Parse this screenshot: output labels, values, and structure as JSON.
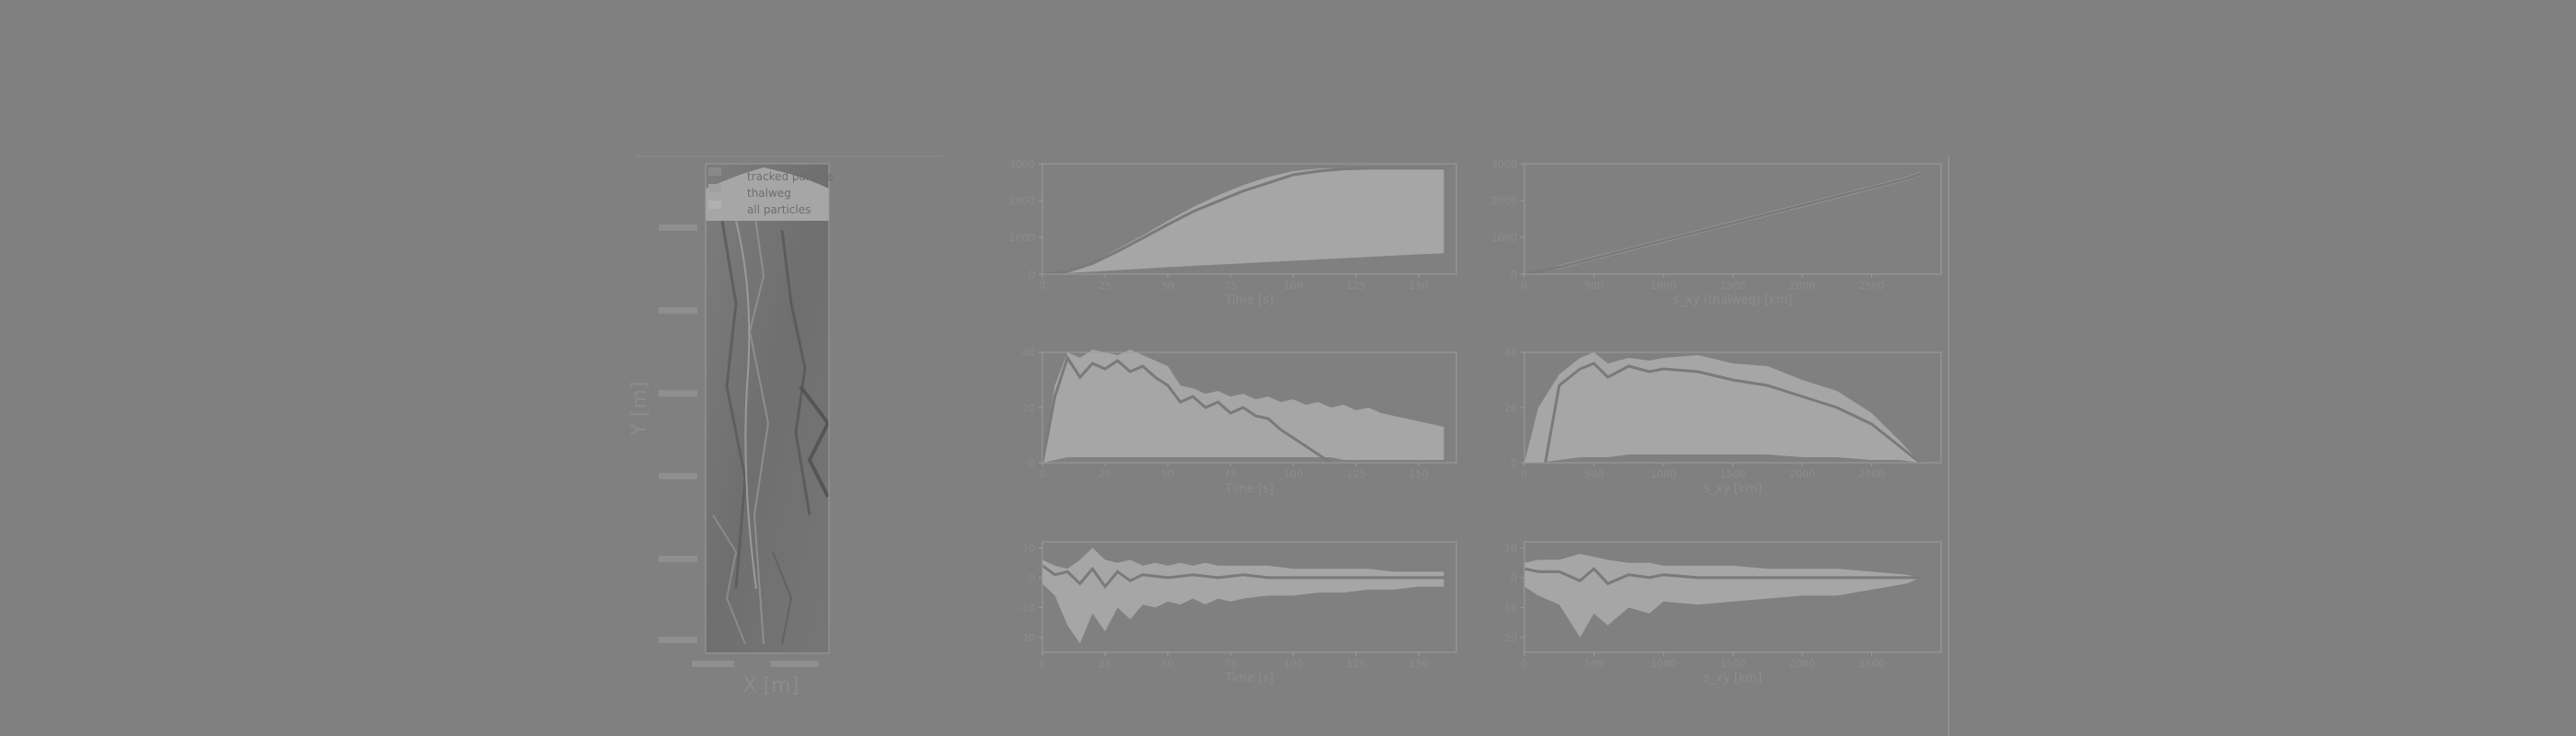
{
  "colors": {
    "background": "#808080",
    "axes": "#9c9c9c",
    "fill": "#a6a6a6",
    "line": "#7a7a7a",
    "text": "#8c8c8c",
    "map_dark": "#5e5e5e",
    "map_light": "#9a9a9a"
  },
  "legend": {
    "tracked": "tracked particle",
    "thalweg": "thalweg",
    "all": "all particles"
  },
  "chart_data": [
    {
      "id": "map",
      "type": "heatmap",
      "description": "hillshade terrain with particle paths",
      "xlabel": "X [m]",
      "ylabel": "Y [m]",
      "xticks": [
        "",
        ""
      ],
      "yticks": [
        "",
        "",
        "",
        "",
        "",
        ""
      ]
    },
    {
      "id": "p1",
      "type": "area",
      "xlabel": "Time [s]",
      "ylabel": "",
      "xlim": [
        0,
        165
      ],
      "ylim": [
        0,
        3000
      ],
      "xticks": [
        0,
        25,
        50,
        75,
        100,
        125,
        150
      ],
      "yticks": [
        0,
        1000,
        2000,
        3000
      ],
      "band_x": [
        0,
        10,
        20,
        30,
        40,
        50,
        60,
        70,
        80,
        90,
        100,
        110,
        120,
        130,
        140,
        150,
        160
      ],
      "band_upper": [
        0,
        80,
        320,
        680,
        1050,
        1450,
        1820,
        2140,
        2420,
        2640,
        2800,
        2870,
        2880,
        2880,
        2880,
        2880,
        2880
      ],
      "band_lower": [
        0,
        30,
        70,
        110,
        150,
        190,
        225,
        260,
        295,
        330,
        365,
        400,
        435,
        470,
        505,
        540,
        570
      ],
      "line_x": [
        0,
        10,
        20,
        30,
        40,
        50,
        60,
        70,
        80,
        90,
        100,
        110,
        120,
        130,
        140,
        150,
        160
      ],
      "line_y": [
        0,
        70,
        290,
        620,
        980,
        1350,
        1700,
        1980,
        2260,
        2480,
        2700,
        2800,
        2860,
        2880,
        2880,
        2880,
        2880
      ]
    },
    {
      "id": "p2",
      "type": "area",
      "xlabel": "s_xy (thalweg) [km]",
      "ylabel": "",
      "xlim": [
        0,
        3000
      ],
      "ylim": [
        0,
        3000
      ],
      "xticks": [
        0,
        500,
        1000,
        1500,
        2000,
        2500
      ],
      "yticks": [
        0,
        1000,
        2000,
        3000
      ],
      "band_x": [
        0,
        250,
        500,
        750,
        1000,
        1250,
        1500,
        1750,
        2000,
        2250,
        2500,
        2750,
        2850
      ],
      "band_upper": [
        0,
        240,
        480,
        720,
        960,
        1200,
        1440,
        1680,
        1920,
        2160,
        2400,
        2640,
        2780
      ],
      "band_lower": [
        0,
        140,
        380,
        620,
        860,
        1100,
        1340,
        1580,
        1820,
        2060,
        2300,
        2540,
        2680
      ],
      "line_x": [
        0,
        250,
        500,
        750,
        1000,
        1250,
        1500,
        1750,
        2000,
        2250,
        2500,
        2750,
        2850
      ],
      "line_y": [
        0,
        190,
        430,
        670,
        910,
        1150,
        1390,
        1630,
        1870,
        2110,
        2350,
        2590,
        2730
      ]
    },
    {
      "id": "p3",
      "type": "area",
      "xlabel": "Time [s]",
      "ylabel": "",
      "xlim": [
        0,
        165
      ],
      "ylim": [
        0,
        40
      ],
      "xticks": [
        0,
        25,
        50,
        75,
        100,
        125,
        150
      ],
      "yticks": [
        0,
        20,
        40
      ],
      "band_x": [
        0,
        5,
        10,
        15,
        20,
        25,
        30,
        35,
        40,
        45,
        50,
        55,
        60,
        65,
        70,
        75,
        80,
        85,
        90,
        95,
        100,
        105,
        110,
        115,
        120,
        125,
        130,
        135,
        140,
        145,
        150,
        155,
        160
      ],
      "band_upper": [
        0,
        28,
        40,
        38,
        41,
        40,
        39,
        41,
        39,
        37,
        35,
        28,
        27,
        25,
        26,
        24,
        25,
        23,
        24,
        22,
        23,
        21,
        22,
        20,
        21,
        19,
        20,
        18,
        17,
        16,
        15,
        14,
        13
      ],
      "band_lower": [
        0,
        1,
        2,
        2,
        2,
        2,
        2,
        2,
        2,
        2,
        2,
        2,
        2,
        2,
        2,
        2,
        2,
        2,
        2,
        2,
        2,
        2,
        2,
        2,
        1,
        1,
        1,
        1,
        1,
        1,
        1,
        1,
        1
      ],
      "line_x": [
        0,
        5,
        10,
        15,
        20,
        25,
        30,
        35,
        40,
        45,
        50,
        55,
        60,
        65,
        70,
        75,
        80,
        85,
        90,
        95,
        100,
        105,
        110,
        115
      ],
      "line_y": [
        0,
        24,
        38,
        31,
        36,
        34,
        37,
        33,
        35,
        31,
        28,
        22,
        24,
        20,
        22,
        18,
        20,
        17,
        16,
        12,
        9,
        6,
        3,
        0
      ]
    },
    {
      "id": "p4",
      "type": "area",
      "xlabel": "s_xy [km]",
      "ylabel": "",
      "xlim": [
        0,
        3000
      ],
      "ylim": [
        0,
        40
      ],
      "xticks": [
        0,
        500,
        1000,
        1500,
        2000,
        2500
      ],
      "yticks": [
        0,
        20,
        40
      ],
      "band_x": [
        0,
        100,
        250,
        400,
        500,
        600,
        750,
        900,
        1000,
        1250,
        1500,
        1750,
        2000,
        2250,
        2500,
        2700,
        2850
      ],
      "band_upper": [
        0,
        20,
        32,
        38,
        40,
        36,
        38,
        37,
        38,
        39,
        36,
        35,
        30,
        26,
        18,
        8,
        0
      ],
      "band_lower": [
        0,
        0,
        1,
        2,
        2,
        2,
        3,
        3,
        3,
        3,
        3,
        3,
        2,
        2,
        1,
        1,
        0
      ],
      "line_x": [
        150,
        250,
        400,
        500,
        600,
        750,
        900,
        1000,
        1250,
        1500,
        1750,
        2000,
        2250,
        2500,
        2700,
        2850
      ],
      "line_y": [
        0,
        28,
        34,
        36,
        31,
        35,
        33,
        34,
        33,
        30,
        28,
        24,
        20,
        14,
        6,
        0
      ]
    },
    {
      "id": "p5",
      "type": "area",
      "xlabel": "Time [s]",
      "ylabel": "",
      "xlim": [
        0,
        165
      ],
      "ylim": [
        -25,
        12
      ],
      "xticks": [
        0,
        25,
        50,
        75,
        100,
        125,
        150
      ],
      "yticks": [
        -20,
        -10,
        0,
        10
      ],
      "band_x": [
        0,
        5,
        10,
        15,
        20,
        25,
        30,
        35,
        40,
        45,
        50,
        55,
        60,
        65,
        70,
        75,
        80,
        90,
        100,
        110,
        120,
        130,
        140,
        150,
        160
      ],
      "band_upper": [
        6,
        4,
        3,
        6,
        10,
        6,
        5,
        6,
        4,
        5,
        4,
        5,
        4,
        5,
        4,
        4,
        4,
        4,
        3,
        3,
        3,
        3,
        2,
        2,
        2
      ],
      "band_lower": [
        -2,
        -6,
        -16,
        -22,
        -12,
        -18,
        -10,
        -14,
        -9,
        -10,
        -8,
        -9,
        -7,
        -9,
        -7,
        -8,
        -7,
        -6,
        -6,
        -5,
        -5,
        -4,
        -4,
        -3,
        -3
      ],
      "line_x": [
        0,
        5,
        10,
        15,
        20,
        25,
        30,
        35,
        40,
        50,
        60,
        70,
        80,
        90,
        100,
        110,
        120,
        130,
        140,
        150,
        160
      ],
      "line_y": [
        4,
        1,
        2,
        -2,
        3,
        -3,
        2,
        -1,
        1,
        0,
        1,
        0,
        1,
        0,
        0,
        0,
        0,
        0,
        0,
        0,
        0
      ]
    },
    {
      "id": "p6",
      "type": "area",
      "xlabel": "s_xy [km]",
      "ylabel": "",
      "xlim": [
        0,
        3000
      ],
      "ylim": [
        -25,
        12
      ],
      "xticks": [
        0,
        500,
        1000,
        1500,
        2000,
        2500
      ],
      "yticks": [
        -20,
        -10,
        0,
        10
      ],
      "band_x": [
        0,
        100,
        250,
        400,
        500,
        600,
        750,
        900,
        1000,
        1250,
        1500,
        1750,
        2000,
        2250,
        2500,
        2750,
        2850
      ],
      "band_upper": [
        5,
        6,
        6,
        8,
        7,
        6,
        5,
        5,
        4,
        4,
        4,
        3,
        3,
        3,
        2,
        1,
        0
      ],
      "band_lower": [
        -3,
        -6,
        -9,
        -20,
        -12,
        -16,
        -10,
        -12,
        -8,
        -9,
        -8,
        -7,
        -6,
        -6,
        -4,
        -2,
        0
      ],
      "line_x": [
        0,
        100,
        250,
        400,
        500,
        600,
        750,
        900,
        1000,
        1250,
        1500,
        1750,
        2000,
        2250,
        2500,
        2750,
        2850
      ],
      "line_y": [
        3,
        2,
        2,
        -1,
        3,
        -2,
        1,
        0,
        1,
        0,
        0,
        0,
        0,
        0,
        0,
        0,
        0
      ]
    }
  ]
}
